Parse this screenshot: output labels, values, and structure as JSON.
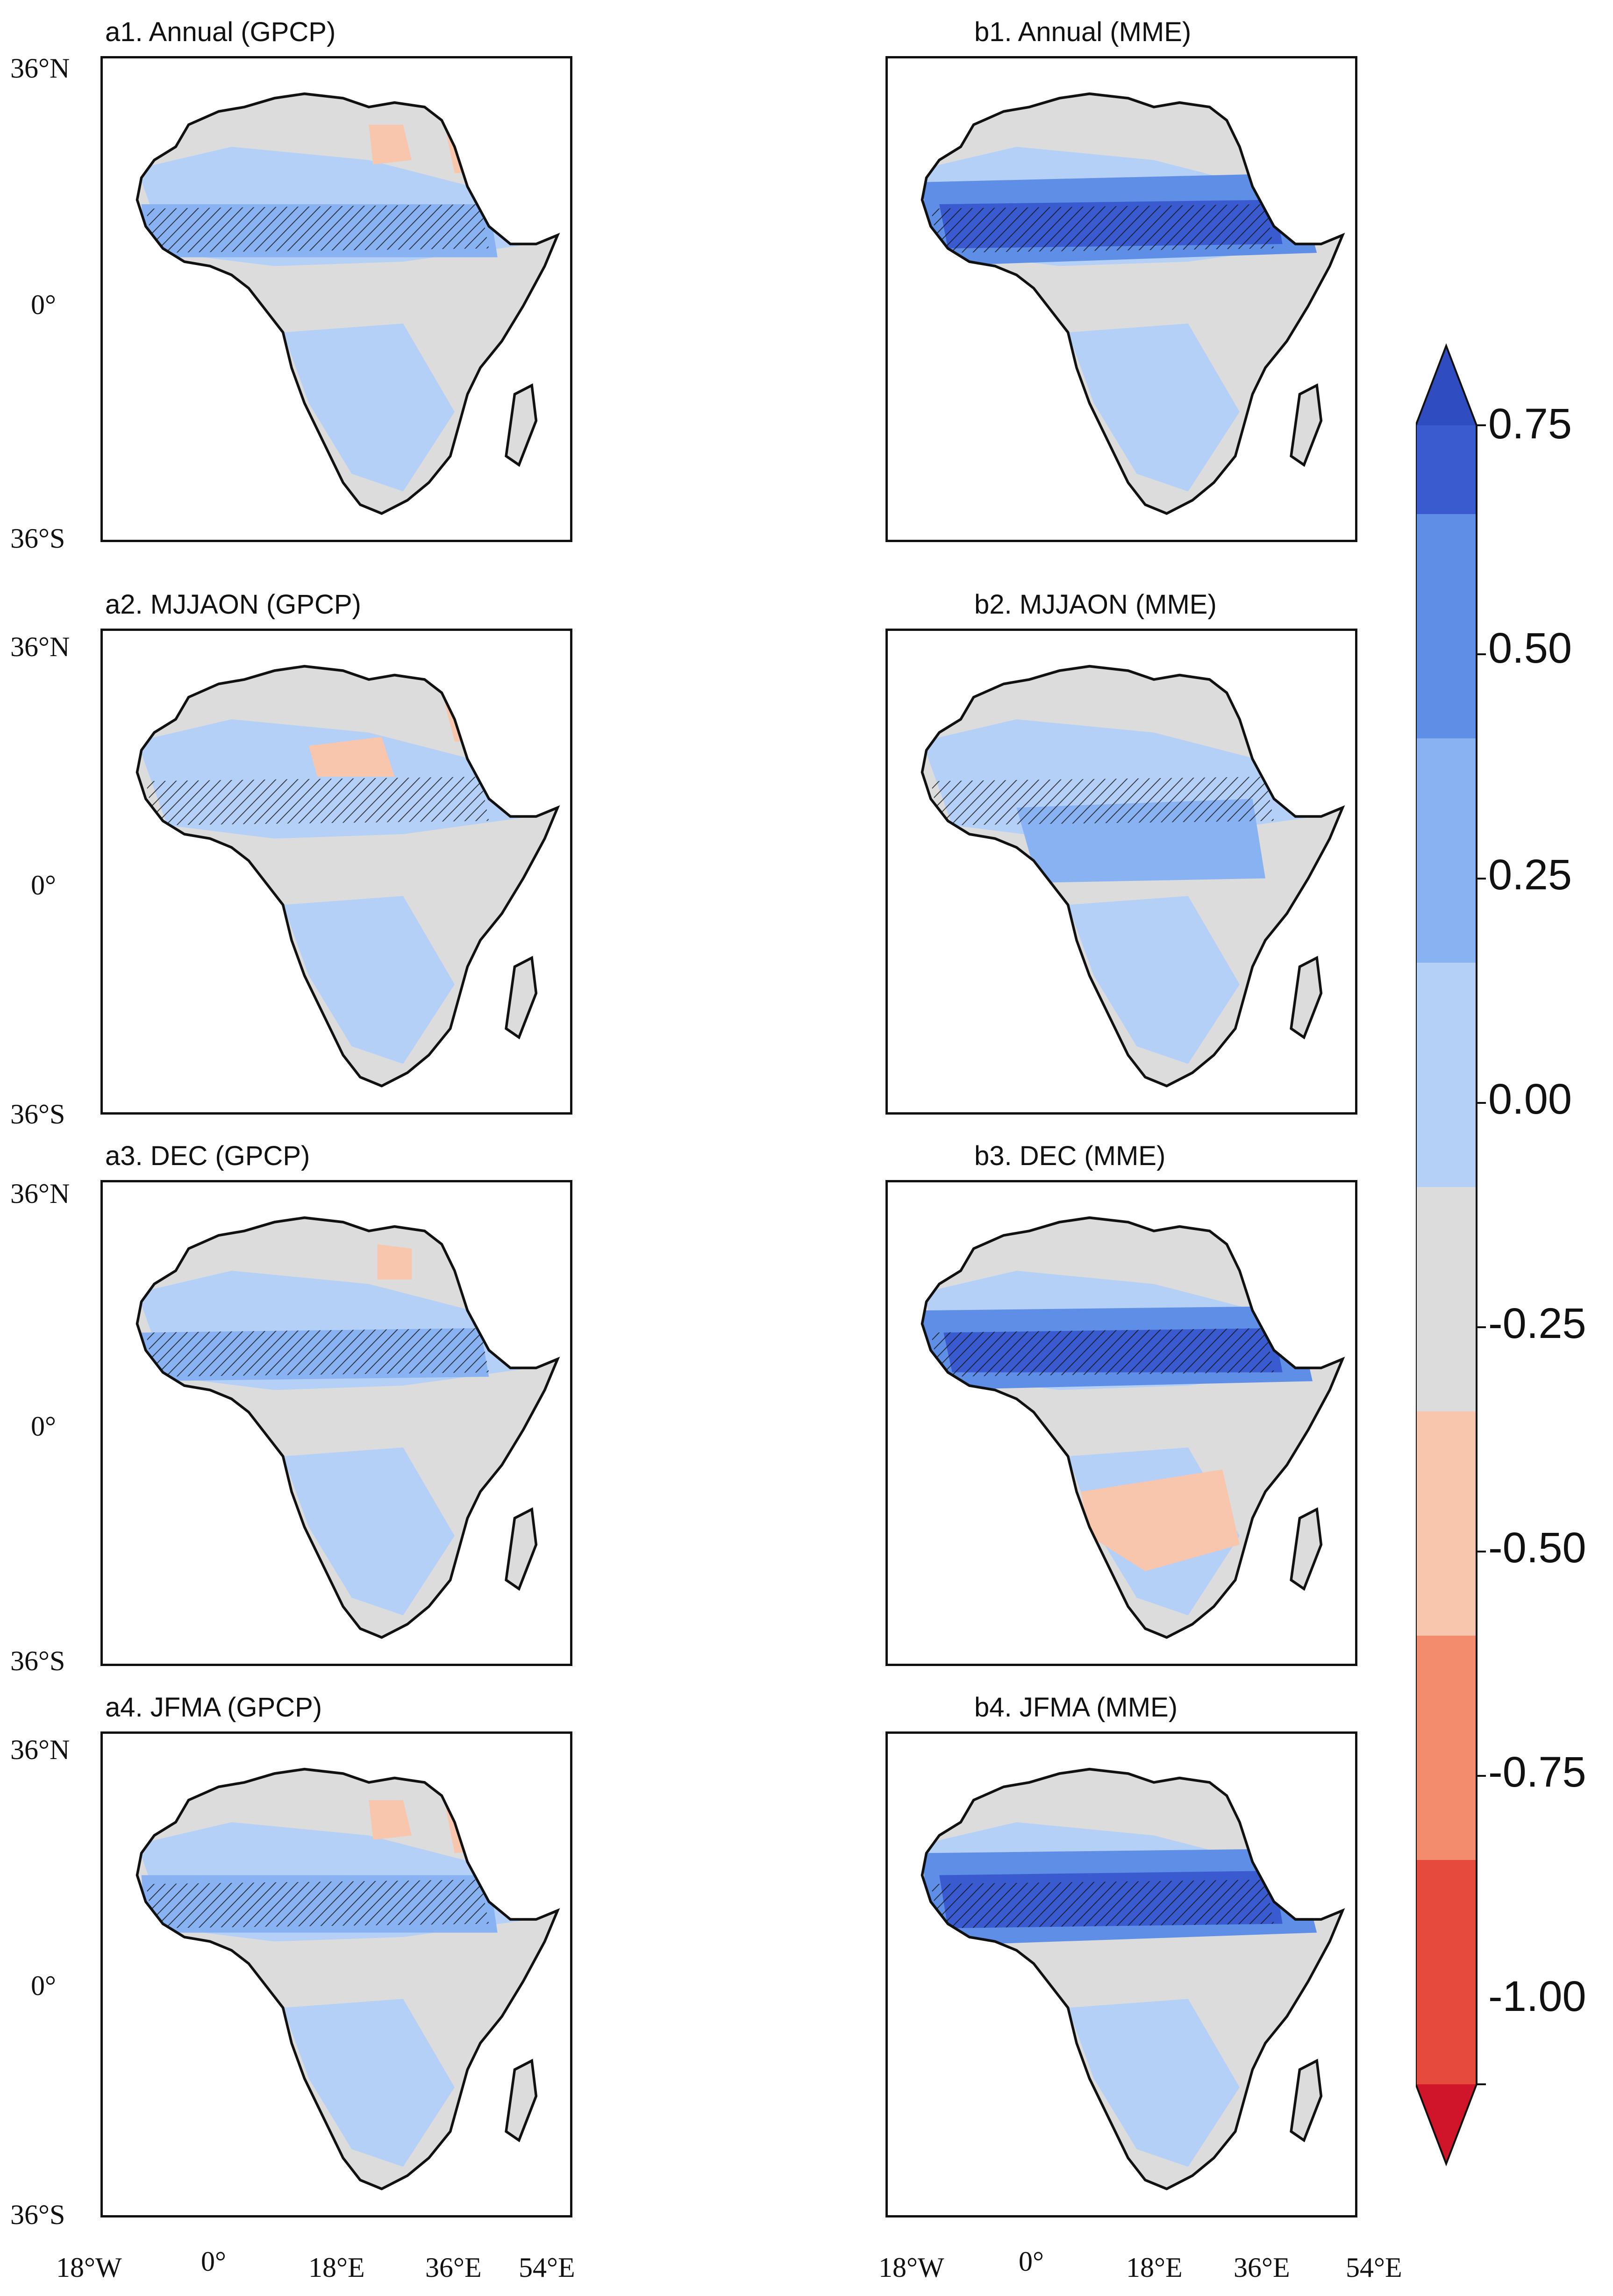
{
  "figure": {
    "lat_labels": [
      "36°N",
      "0°",
      "36°S"
    ],
    "lon_labels": [
      "18°W",
      "0°",
      "18°E",
      "36°E",
      "54°E"
    ],
    "hatching_meaning": "significant"
  },
  "panels": [
    {
      "id": "a1",
      "title": "a1. Annual (GPCP)",
      "column": "left",
      "row": 1
    },
    {
      "id": "a2",
      "title": "a2. MJJAON (GPCP)",
      "column": "left",
      "row": 2
    },
    {
      "id": "a3",
      "title": "a3. DEC (GPCP)",
      "column": "left",
      "row": 3
    },
    {
      "id": "a4",
      "title": "a4. JFMA (GPCP)",
      "column": "left",
      "row": 4
    },
    {
      "id": "b1",
      "title": "b1. Annual (MME)",
      "column": "right",
      "row": 1
    },
    {
      "id": "b2",
      "title": "b2.  MJJAON (MME)",
      "column": "right",
      "row": 2
    },
    {
      "id": "b3",
      "title": "b3. DEC (MME)",
      "column": "right",
      "row": 3
    },
    {
      "id": "b4",
      "title": "b4. JFMA (MME)",
      "column": "right",
      "row": 4
    }
  ],
  "colorbar": {
    "labels": [
      "0.75",
      "0.50",
      "0.25",
      "0.00",
      "-0.25",
      "-0.50",
      "-0.75",
      "-1.00"
    ],
    "colors": {
      "top_arrow": "#2f4cc0",
      "b_075_1": "#3a5bd0",
      "b_050_075": "#5f8ee6",
      "b_025_050": "#89b2f2",
      "b_000_025": "#b5d0f7",
      "b_m025_000": "#dcdcdc",
      "b_m050_m025": "#f8c5ad",
      "b_m075_m050": "#f38c6c",
      "b_m100_m075": "#e64a3c",
      "bottom_arrow": "#d0152a"
    }
  },
  "palette": {
    "land_gray": "#dcdcdc",
    "light_blue": "#b5d0f7",
    "mid_blue": "#89b2f2",
    "dark_blue": "#5f8ee6",
    "deep_blue": "#3a5bd0",
    "light_red": "#f8c5ad",
    "mid_red": "#f38c6c"
  }
}
